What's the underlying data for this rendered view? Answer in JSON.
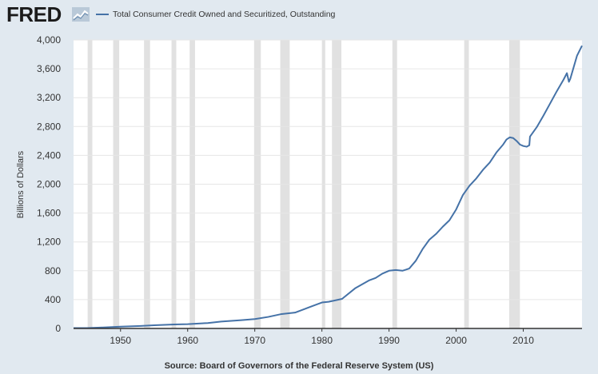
{
  "header": {
    "brand": "FRED",
    "brand_icon": "chart-line-icon"
  },
  "source_text": "Source: Board of Governors of the Federal Reserve System (US)",
  "colors": {
    "background": "#e1e9f0",
    "plot_background": "#ffffff",
    "series": "#4572a7",
    "recession": "#e1e1e1",
    "grid": "#e6e6e6"
  },
  "chart_data": {
    "type": "line",
    "title": "",
    "xlabel": "",
    "ylabel": "Billions of Dollars",
    "xlim": [
      1943,
      2018.75
    ],
    "ylim": [
      0,
      4000
    ],
    "x_ticks": [
      "1950",
      "1960",
      "1970",
      "1980",
      "1990",
      "2000",
      "2010"
    ],
    "y_ticks": [
      "0",
      "400",
      "800",
      "1,200",
      "1,600",
      "2,000",
      "2,400",
      "2,800",
      "3,200",
      "3,600",
      "4,000"
    ],
    "grid": true,
    "legend": "top-left",
    "recessions": [
      [
        1945.1,
        1945.8
      ],
      [
        1948.9,
        1949.8
      ],
      [
        1953.5,
        1954.4
      ],
      [
        1957.6,
        1958.3
      ],
      [
        1960.3,
        1961.1
      ],
      [
        1969.9,
        1970.9
      ],
      [
        1973.8,
        1975.2
      ],
      [
        1980.0,
        1980.5
      ],
      [
        1981.5,
        1982.9
      ],
      [
        1990.5,
        1991.2
      ],
      [
        2001.2,
        2001.9
      ],
      [
        2007.9,
        2009.5
      ]
    ],
    "series": [
      {
        "name": "Total Consumer Credit Owned and Securitized, Outstanding",
        "x": [
          1943,
          1945,
          1947,
          1950,
          1953,
          1955,
          1958,
          1960,
          1963,
          1965,
          1968,
          1970,
          1972,
          1974,
          1976,
          1978,
          1980,
          1981,
          1983,
          1985,
          1987,
          1988,
          1989,
          1990,
          1991,
          1992,
          1993,
          1994,
          1995,
          1996,
          1997,
          1998,
          1999,
          2000,
          2001,
          2002,
          2003,
          2004,
          2005,
          2006,
          2007,
          2007.5,
          2008,
          2008.5,
          2009,
          2009.5,
          2010,
          2010.5,
          2010.9,
          2011,
          2012,
          2013,
          2014,
          2015,
          2016,
          2016.5,
          2016.8,
          2017,
          2017.5,
          2018,
          2018.75
        ],
        "values": [
          5,
          6,
          12,
          25,
          35,
          45,
          55,
          60,
          75,
          95,
          115,
          130,
          160,
          200,
          220,
          290,
          360,
          370,
          410,
          560,
          665,
          700,
          760,
          800,
          810,
          800,
          830,
          940,
          1100,
          1230,
          1310,
          1410,
          1500,
          1650,
          1850,
          1980,
          2080,
          2200,
          2300,
          2440,
          2550,
          2620,
          2650,
          2640,
          2600,
          2550,
          2530,
          2520,
          2540,
          2660,
          2790,
          2950,
          3120,
          3290,
          3450,
          3540,
          3420,
          3460,
          3620,
          3780,
          3920
        ]
      }
    ]
  }
}
